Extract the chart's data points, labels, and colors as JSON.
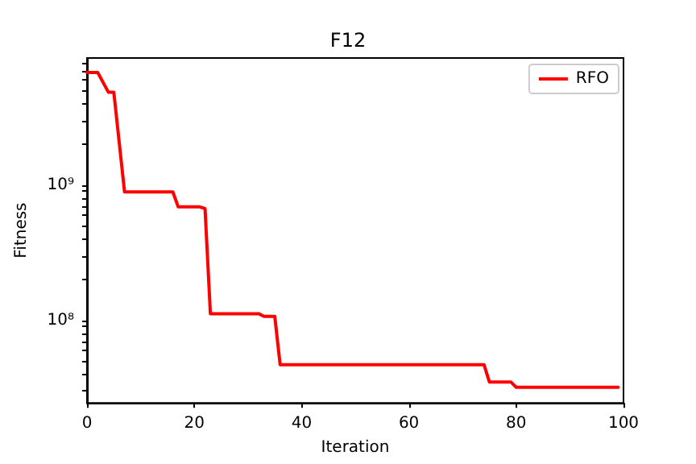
{
  "chart_data": {
    "type": "line",
    "title": "F12",
    "xlabel": "Iteration",
    "ylabel": "Fitness",
    "x": [
      0,
      2,
      4,
      5,
      7,
      16,
      17,
      21,
      22,
      23,
      32,
      33,
      35,
      36,
      74,
      75,
      79,
      80,
      99
    ],
    "series": [
      {
        "name": "RFO",
        "color": "#ff0000",
        "values": [
          6800000000.0,
          6800000000.0,
          4850000000.0,
          4850000000.0,
          890000000.0,
          890000000.0,
          690000000.0,
          690000000.0,
          670000000.0,
          112000000.0,
          112000000.0,
          107000000.0,
          107000000.0,
          47000000.0,
          47000000.0,
          35000000.0,
          35000000.0,
          32000000.0,
          32000000.0
        ]
      }
    ],
    "xlim": [
      0,
      100
    ],
    "xticks": [
      0,
      20,
      40,
      60,
      80,
      100
    ],
    "ylim": [
      24500000.0,
      8700000000.0
    ],
    "yticks": [
      {
        "value": 30000000.0,
        "label": null
      },
      {
        "value": 40000000.0,
        "label": null
      },
      {
        "value": 50000000.0,
        "label": null
      },
      {
        "value": 60000000.0,
        "label": null
      },
      {
        "value": 70000000.0,
        "label": null
      },
      {
        "value": 80000000.0,
        "label": null
      },
      {
        "value": 90000000.0,
        "label": null
      },
      {
        "value": 100000000.0,
        "label": "10⁸"
      },
      {
        "value": 200000000.0,
        "label": null
      },
      {
        "value": 300000000.0,
        "label": null
      },
      {
        "value": 400000000.0,
        "label": null
      },
      {
        "value": 500000000.0,
        "label": null
      },
      {
        "value": 600000000.0,
        "label": null
      },
      {
        "value": 700000000.0,
        "label": null
      },
      {
        "value": 800000000.0,
        "label": null
      },
      {
        "value": 900000000.0,
        "label": null
      },
      {
        "value": 1000000000.0,
        "label": "10⁹"
      },
      {
        "value": 2000000000.0,
        "label": null
      },
      {
        "value": 3000000000.0,
        "label": null
      },
      {
        "value": 4000000000.0,
        "label": null
      },
      {
        "value": 5000000000.0,
        "label": null
      },
      {
        "value": 6000000000.0,
        "label": null
      },
      {
        "value": 7000000000.0,
        "label": null
      },
      {
        "value": 8000000000.0,
        "label": null
      }
    ],
    "log": "y",
    "grid": false,
    "legend": "top right",
    "marker": "none",
    "line_style": "solid"
  }
}
